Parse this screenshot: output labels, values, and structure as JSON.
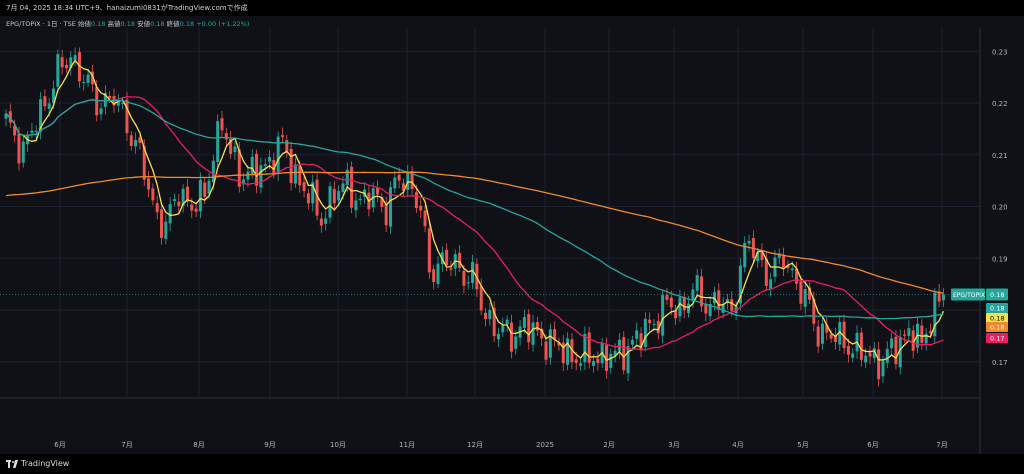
{
  "header": {
    "snapshot_text": "7月 04, 2025 18:34 UTC+9、hanaizumi0831がTradingView.comで作成"
  },
  "legend": {
    "symbol": "EPG/TOPIX · 1日 · TSE",
    "open_label": "始値",
    "open_value": "0.18",
    "high_label": "高値",
    "high_value": "0.18",
    "low_label": "安値",
    "low_value": "0.18",
    "close_label": "終値",
    "close_value": "0.18",
    "change": "+0.00 (+1.22%)"
  },
  "footer": {
    "brand": "TradingView"
  },
  "chart_data": {
    "type": "candlestick",
    "title": "EPG/TOPIX · 1日 · TSE",
    "x_tick_labels": [
      "6月",
      "7月",
      "8月",
      "9月",
      "10月",
      "11月",
      "12月",
      "2025",
      "2月",
      "3月",
      "4月",
      "5月",
      "6月",
      "7月"
    ],
    "y_tick_labels": [
      "0.17",
      "0.18",
      "0.19",
      "0.20",
      "0.21",
      "0.22",
      "0.23"
    ],
    "ylim": [
      0.163,
      0.2345
    ],
    "grid": true,
    "price_tag": {
      "label": "EPG/TOPIX",
      "value": "0.18",
      "color": "#26a69a"
    },
    "ma_tags": [
      {
        "value": "0.18",
        "color": "#26a69a"
      },
      {
        "value": "0.18",
        "color": "#f5e14a"
      },
      {
        "value": "0.18",
        "color": "#f0892f"
      },
      {
        "value": "0.17",
        "color": "#e91e63"
      }
    ],
    "colors": {
      "up": "#26a69a",
      "down": "#ef5350",
      "background": "#0f1117",
      "grid": "#1c2030"
    },
    "price_key_points": [
      [
        0,
        0.216
      ],
      [
        4,
        0.211
      ],
      [
        8,
        0.218
      ],
      [
        12,
        0.226
      ],
      [
        15,
        0.229
      ],
      [
        18,
        0.225
      ],
      [
        21,
        0.22
      ],
      [
        25,
        0.221
      ],
      [
        28,
        0.216
      ],
      [
        31,
        0.21
      ],
      [
        34,
        0.2
      ],
      [
        37,
        0.196
      ],
      [
        40,
        0.203
      ],
      [
        43,
        0.2
      ],
      [
        46,
        0.202
      ],
      [
        48,
        0.211
      ],
      [
        50,
        0.216
      ],
      [
        52,
        0.21
      ],
      [
        55,
        0.206
      ],
      [
        59,
        0.207
      ],
      [
        62,
        0.21
      ],
      [
        64,
        0.212
      ],
      [
        67,
        0.206
      ],
      [
        70,
        0.202
      ],
      [
        73,
        0.198
      ],
      [
        76,
        0.202
      ],
      [
        79,
        0.205
      ],
      [
        82,
        0.2
      ],
      [
        85,
        0.203
      ],
      [
        88,
        0.199
      ],
      [
        91,
        0.206
      ],
      [
        93,
        0.205
      ],
      [
        96,
        0.199
      ],
      [
        98,
        0.188
      ],
      [
        101,
        0.189
      ],
      [
        104,
        0.189
      ],
      [
        106,
        0.187
      ],
      [
        108,
        0.186
      ],
      [
        111,
        0.179
      ],
      [
        114,
        0.176
      ],
      [
        117,
        0.175
      ],
      [
        120,
        0.177
      ],
      [
        123,
        0.175
      ],
      [
        126,
        0.174
      ],
      [
        129,
        0.172
      ],
      [
        132,
        0.171
      ],
      [
        135,
        0.171
      ],
      [
        138,
        0.171
      ],
      [
        141,
        0.171
      ],
      [
        144,
        0.173
      ],
      [
        147,
        0.175
      ],
      [
        150,
        0.178
      ],
      [
        153,
        0.181
      ],
      [
        156,
        0.18
      ],
      [
        159,
        0.184
      ],
      [
        162,
        0.181
      ],
      [
        165,
        0.182
      ],
      [
        168,
        0.179
      ],
      [
        170,
        0.189
      ],
      [
        172,
        0.193
      ],
      [
        174,
        0.19
      ],
      [
        176,
        0.187
      ],
      [
        178,
        0.188
      ],
      [
        180,
        0.19
      ],
      [
        182,
        0.187
      ],
      [
        185,
        0.182
      ],
      [
        188,
        0.176
      ],
      [
        191,
        0.175
      ],
      [
        194,
        0.174
      ],
      [
        197,
        0.172
      ],
      [
        200,
        0.171
      ],
      [
        203,
        0.17
      ],
      [
        206,
        0.173
      ],
      [
        209,
        0.176
      ],
      [
        212,
        0.173
      ],
      [
        214,
        0.179
      ],
      [
        216,
        0.182
      ],
      [
        217,
        0.183
      ]
    ],
    "ma_series": [
      {
        "color": "#f5e14a",
        "period": 5
      },
      {
        "color": "#e91e63",
        "period": 25
      },
      {
        "color": "#26a69a",
        "period": 75
      },
      {
        "color": "#f0892f",
        "period": 150,
        "start_value": 0.202
      }
    ]
  }
}
